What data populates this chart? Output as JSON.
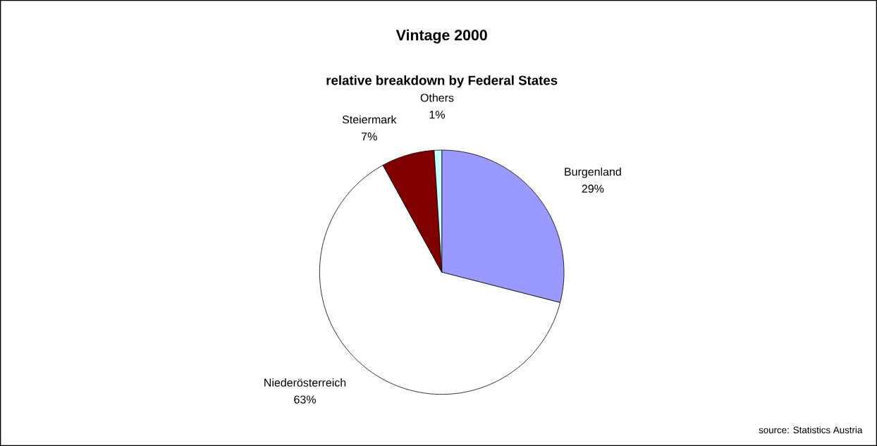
{
  "chart_data": {
    "type": "pie",
    "title": "Vintage 2000",
    "subtitle": "relative breakdown by Federal States",
    "categories": [
      "Burgenland",
      "Niederösterreich",
      "Steiermark",
      "Others"
    ],
    "values": [
      29,
      63,
      7,
      1
    ],
    "value_labels": [
      "29%",
      "63%",
      "7%",
      "1%"
    ],
    "colors": [
      "#9999ff",
      "#ffffff",
      "#800000",
      "#ccffff"
    ],
    "annotations": [
      "source: Statistics Austria"
    ]
  }
}
